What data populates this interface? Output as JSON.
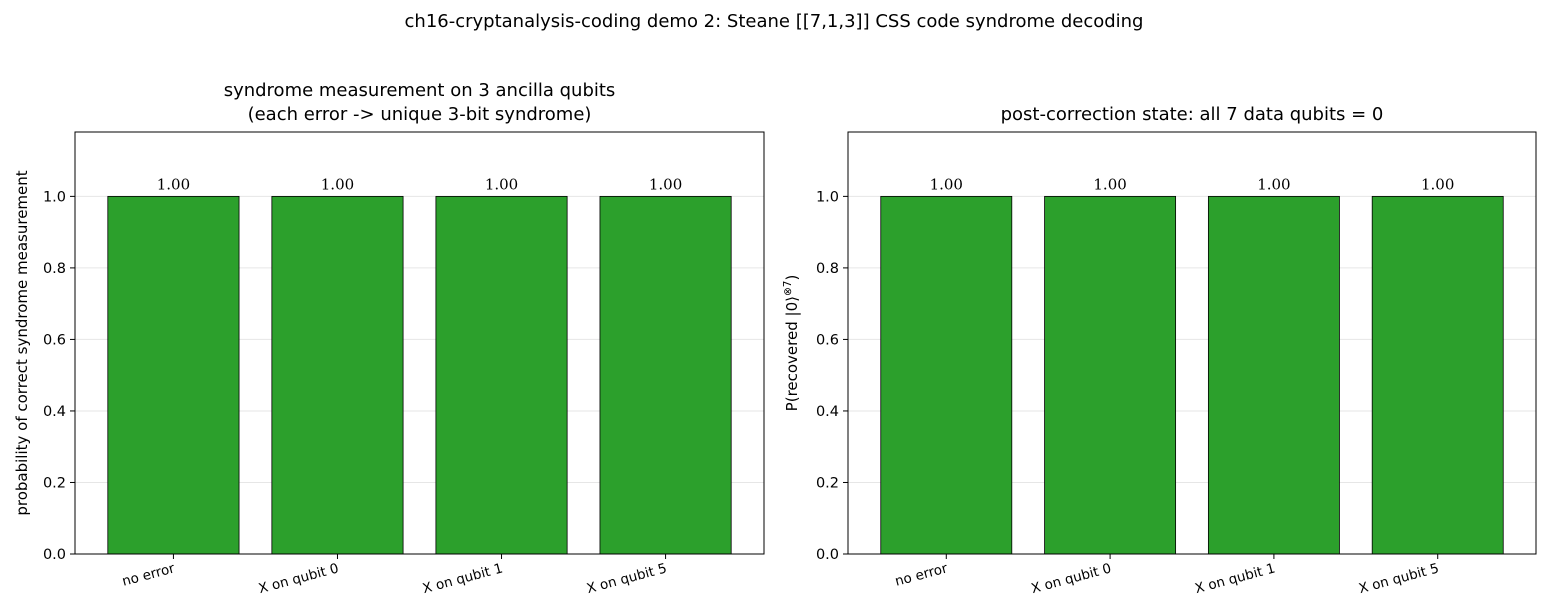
{
  "suptitle": "ch16-cryptanalysis-coding demo 2: Steane [[7,1,3]] CSS code syndrome decoding",
  "chart_data": [
    {
      "type": "bar",
      "title_lines": [
        "syndrome measurement on 3 ancilla qubits",
        "(each error -> unique 3-bit syndrome)"
      ],
      "xlabel": "",
      "ylabel": "probability of correct syndrome measurement",
      "categories": [
        "no error",
        "X on qubit 0",
        "X on qubit 1",
        "X on qubit 5"
      ],
      "values": [
        1.0,
        1.0,
        1.0,
        1.0
      ],
      "data_labels": [
        "1.00",
        "1.00",
        "1.00",
        "1.00"
      ],
      "ylim": [
        0,
        1.18
      ],
      "yticks": [
        0.0,
        0.2,
        0.4,
        0.6,
        0.8,
        1.0
      ],
      "ytick_labels": [
        "0.0",
        "0.2",
        "0.4",
        "0.6",
        "0.8",
        "1.0"
      ],
      "grid": "y",
      "bar_color": "#2ca02c"
    },
    {
      "type": "bar",
      "title_lines": [
        "post-correction state: all 7 data qubits = 0"
      ],
      "xlabel": "",
      "ylabel": "P(recovered |0⟩",
      "ylabel_sup": "⊗7",
      "ylabel_tail": ")",
      "categories": [
        "no error",
        "X on qubit 0",
        "X on qubit 1",
        "X on qubit 5"
      ],
      "values": [
        1.0,
        1.0,
        1.0,
        1.0
      ],
      "data_labels": [
        "1.00",
        "1.00",
        "1.00",
        "1.00"
      ],
      "ylim": [
        0,
        1.18
      ],
      "yticks": [
        0.0,
        0.2,
        0.4,
        0.6,
        0.8,
        1.0
      ],
      "ytick_labels": [
        "0.0",
        "0.2",
        "0.4",
        "0.6",
        "0.8",
        "1.0"
      ],
      "grid": "y",
      "bar_color": "#2ca02c"
    }
  ]
}
